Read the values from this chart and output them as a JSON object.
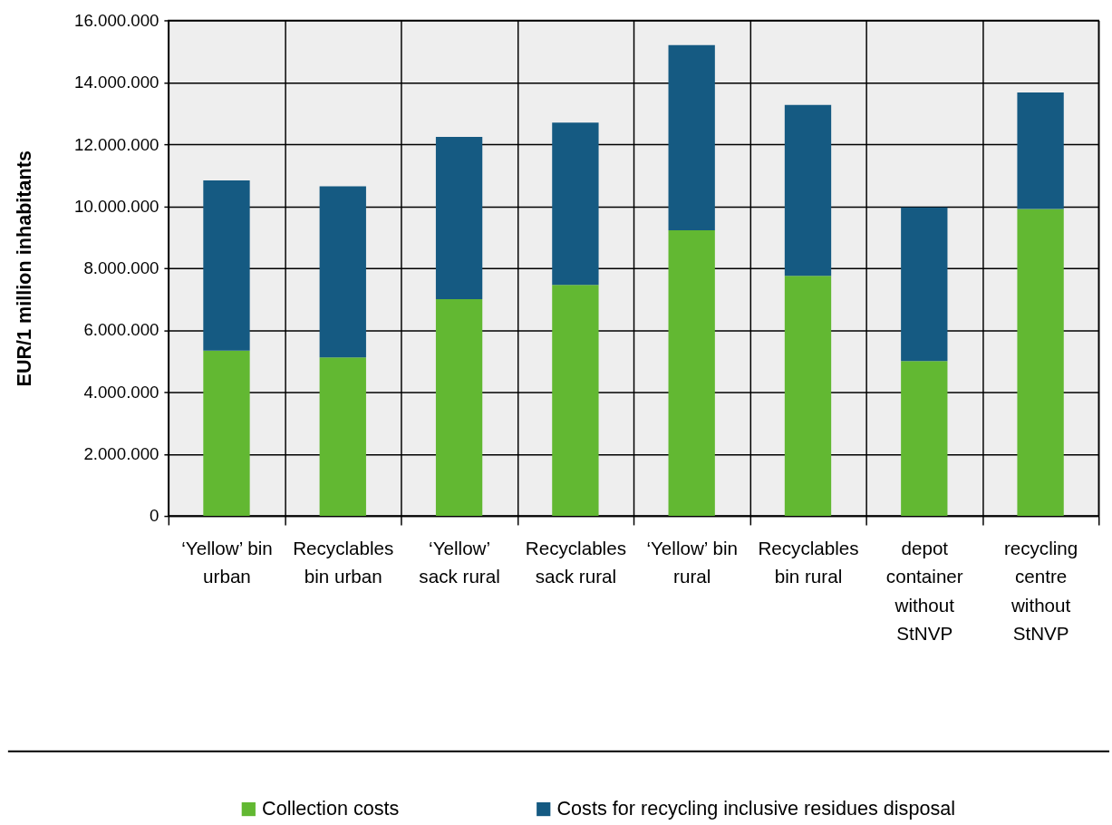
{
  "chart_data": {
    "type": "bar",
    "ylabel": "EUR/1 million inhabitants",
    "categories": [
      "‘Yellow’ bin urban",
      "Recyclables bin urban",
      "‘Yellow’ sack rural",
      "Recyclables sack rural",
      "‘Yellow’ bin rural",
      "Recyclables bin rural",
      "depot container without StNVP",
      "recycling centre without StNVP"
    ],
    "series": [
      {
        "name": "Collection costs",
        "color": "#62b832",
        "values": [
          5340000,
          5120000,
          7000000,
          7460000,
          9220000,
          7750000,
          5000000,
          9910000
        ]
      },
      {
        "name": "Costs for recycling inclusive residues disposal",
        "color": "#155a82",
        "values": [
          5490000,
          5520000,
          5240000,
          5240000,
          5980000,
          5520000,
          4960000,
          3760000
        ]
      }
    ],
    "stacked": true,
    "ylim": [
      0,
      16000000
    ],
    "yticks": [
      0,
      {
        "value": 2000000,
        "label": "2.000.000"
      },
      {
        "value": 4000000,
        "label": "4.000.000"
      },
      {
        "value": 6000000,
        "label": "6.000.000"
      },
      {
        "value": 8000000,
        "label": "8.000.000"
      },
      {
        "value": 10000000,
        "label": "10.000.000"
      },
      {
        "value": 12000000,
        "label": "12.000.000"
      },
      {
        "value": 14000000,
        "label": "14.000.000"
      },
      {
        "value": 16000000,
        "label": "16.000.000"
      }
    ],
    "grid": true,
    "legend": "bottom"
  }
}
